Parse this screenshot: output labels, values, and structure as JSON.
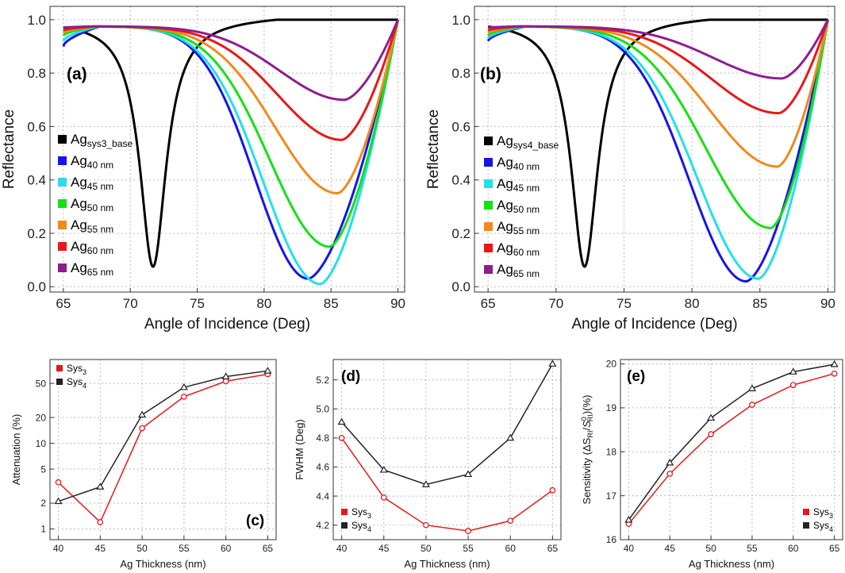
{
  "figure_labels": [
    "(a)",
    "(b)",
    "(c)",
    "(d)",
    "(e)"
  ],
  "chart_data": [
    {
      "id": "a",
      "type": "line",
      "panel_label": "(a)",
      "title": "",
      "xlabel": "Angle of Incidence (Deg)",
      "ylabel": "Reflectance",
      "xlim": [
        64,
        90.5
      ],
      "ylim": [
        -0.02,
        1.05
      ],
      "xticks": [
        "65",
        "70",
        "75",
        "80",
        "85",
        "90"
      ],
      "yticks": [
        "0.0",
        "0.2",
        "0.4",
        "0.6",
        "0.8",
        "1.0"
      ],
      "grid": true,
      "legend_position": "left",
      "series": [
        {
          "base": "Ag",
          "sub": "sys3_base",
          "color": "#000000",
          "curve": {
            "start": 0.97,
            "kink": 67.7,
            "minx": 71.7,
            "miny": 0.05,
            "w": 1.2
          }
        },
        {
          "base": "Ag",
          "sub": "40 nm",
          "color": "#1515e6",
          "curve": {
            "start": 0.9,
            "kink": 67.7,
            "minx": 83.3,
            "miny": 0.03,
            "w": 3.0
          }
        },
        {
          "base": "Ag",
          "sub": "45 nm",
          "color": "#22e0ea",
          "curve": {
            "start": 0.92,
            "kink": 67.6,
            "minx": 84.2,
            "miny": 0.01,
            "w": 3.0
          }
        },
        {
          "base": "Ag",
          "sub": "50 nm",
          "color": "#15e015",
          "curve": {
            "start": 0.94,
            "kink": 67.5,
            "minx": 84.9,
            "miny": 0.15,
            "w": 3.0
          }
        },
        {
          "base": "Ag",
          "sub": "55 nm",
          "color": "#f08a1c",
          "curve": {
            "start": 0.95,
            "kink": 67.4,
            "minx": 85.5,
            "miny": 0.35,
            "w": 3.0
          }
        },
        {
          "base": "Ag",
          "sub": "60 nm",
          "color": "#e81818",
          "curve": {
            "start": 0.96,
            "kink": 67.3,
            "minx": 85.8,
            "miny": 0.55,
            "w": 3.0
          }
        },
        {
          "base": "Ag",
          "sub": "65 nm",
          "color": "#8e1e8e",
          "curve": {
            "start": 0.97,
            "kink": 67.2,
            "minx": 86.0,
            "miny": 0.7,
            "w": 3.0
          }
        }
      ]
    },
    {
      "id": "b",
      "type": "line",
      "panel_label": "(b)",
      "title": "",
      "xlabel": "Angle of Incidence (Deg)",
      "ylabel": "Reflectance",
      "xlim": [
        64,
        90.5
      ],
      "ylim": [
        -0.02,
        1.05
      ],
      "xticks": [
        "65",
        "70",
        "75",
        "80",
        "85",
        "90"
      ],
      "yticks": [
        "0.0",
        "0.2",
        "0.4",
        "0.6",
        "0.8",
        "1.0"
      ],
      "grid": true,
      "legend_position": "left",
      "series": [
        {
          "base": "Ag",
          "sub": "sys4_base",
          "color": "#000000",
          "curve": {
            "start": 0.98,
            "kink": 67.7,
            "minx": 72.1,
            "miny": 0.05,
            "w": 1.2
          }
        },
        {
          "base": "Ag",
          "sub": "40 nm",
          "color": "#1515e6",
          "curve": {
            "start": 0.92,
            "kink": 67.7,
            "minx": 84.0,
            "miny": 0.02,
            "w": 3.1
          }
        },
        {
          "base": "Ag",
          "sub": "45 nm",
          "color": "#22e0ea",
          "curve": {
            "start": 0.93,
            "kink": 67.6,
            "minx": 84.9,
            "miny": 0.03,
            "w": 3.1
          }
        },
        {
          "base": "Ag",
          "sub": "50 nm",
          "color": "#15e015",
          "curve": {
            "start": 0.94,
            "kink": 67.5,
            "minx": 85.8,
            "miny": 0.22,
            "w": 3.1
          }
        },
        {
          "base": "Ag",
          "sub": "55 nm",
          "color": "#f08a1c",
          "curve": {
            "start": 0.95,
            "kink": 67.4,
            "minx": 86.3,
            "miny": 0.45,
            "w": 3.1
          }
        },
        {
          "base": "Ag",
          "sub": "60 nm",
          "color": "#e81818",
          "curve": {
            "start": 0.96,
            "kink": 67.3,
            "minx": 86.4,
            "miny": 0.65,
            "w": 3.1
          }
        },
        {
          "base": "Ag",
          "sub": "65 nm",
          "color": "#8e1e8e",
          "curve": {
            "start": 0.97,
            "kink": 67.2,
            "minx": 86.6,
            "miny": 0.78,
            "w": 3.1
          }
        }
      ]
    },
    {
      "id": "c",
      "type": "line",
      "panel_label": "(c)",
      "title": "",
      "xlabel": "Ag Thickness (nm)",
      "ylabel": "Attenuation (%)",
      "yscale": "log",
      "xlim": [
        39,
        66
      ],
      "ylim": [
        0.75,
        95
      ],
      "xticks": [
        40,
        45,
        50,
        55,
        60,
        65
      ],
      "yticks": [
        1,
        2,
        5,
        10,
        20,
        50
      ],
      "yticklabels": [
        "1",
        "2",
        "5",
        "10",
        "20",
        "50"
      ],
      "grid": true,
      "legend_position": "top-left",
      "x": [
        40,
        45,
        50,
        55,
        60,
        65
      ],
      "series": [
        {
          "base": "Sys",
          "sub": "3",
          "color": "#e81818",
          "marker": "circle",
          "values": [
            3.5,
            1.2,
            15,
            35,
            53,
            64
          ]
        },
        {
          "base": "Sys",
          "sub": "4",
          "color": "#222222",
          "marker": "triangle",
          "values": [
            2.1,
            3.1,
            21.5,
            45,
            60,
            70
          ]
        }
      ]
    },
    {
      "id": "d",
      "type": "line",
      "panel_label": "(d)",
      "title": "",
      "xlabel": "Ag Thickness (nm)",
      "ylabel": "FWHM (Deg)",
      "xlim": [
        39,
        66
      ],
      "ylim": [
        4.1,
        5.34
      ],
      "xticks": [
        40,
        45,
        50,
        55,
        60,
        65
      ],
      "yticks": [
        4.2,
        4.4,
        4.6,
        4.8,
        5.0,
        5.2
      ],
      "yticklabels": [
        "4.2",
        "4.4",
        "4.6",
        "4.8",
        "5.0",
        "5.2"
      ],
      "grid": true,
      "legend_position": "bottom-left",
      "x": [
        40,
        45,
        50,
        55,
        60,
        65
      ],
      "series": [
        {
          "base": "Sys",
          "sub": "3",
          "color": "#e81818",
          "marker": "circle",
          "values": [
            4.8,
            4.39,
            4.2,
            4.16,
            4.23,
            4.44
          ]
        },
        {
          "base": "Sys",
          "sub": "4",
          "color": "#222222",
          "marker": "triangle",
          "values": [
            4.91,
            4.58,
            4.48,
            4.55,
            4.8,
            5.31
          ]
        }
      ]
    },
    {
      "id": "e",
      "type": "line",
      "panel_label": "(e)",
      "title": "",
      "xlabel": "Ag Thickness (nm)",
      "ylabel_parts": {
        "pre": "Sensitivity (ΔS",
        "sub1": "RI",
        "mid": "/",
        "italic": "S",
        "sup2": "0",
        "sub2": "RI",
        "post": ")(%)"
      },
      "xlim": [
        39,
        66
      ],
      "ylim": [
        16.0,
        20.1
      ],
      "xticks": [
        40,
        45,
        50,
        55,
        60,
        65
      ],
      "yticks": [
        16,
        17,
        18,
        19,
        20
      ],
      "yticklabels": [
        "16",
        "17",
        "18",
        "19",
        "20"
      ],
      "grid": true,
      "legend_position": "bottom-right",
      "x": [
        40,
        45,
        50,
        55,
        60,
        65
      ],
      "series": [
        {
          "base": "Sys",
          "sub": "3",
          "color": "#e81818",
          "marker": "circle",
          "values": [
            16.36,
            17.5,
            18.4,
            19.07,
            19.52,
            19.78
          ]
        },
        {
          "base": "Sys",
          "sub": "4",
          "color": "#222222",
          "marker": "triangle",
          "values": [
            16.45,
            17.75,
            18.77,
            19.44,
            19.82,
            19.99
          ]
        }
      ]
    }
  ]
}
